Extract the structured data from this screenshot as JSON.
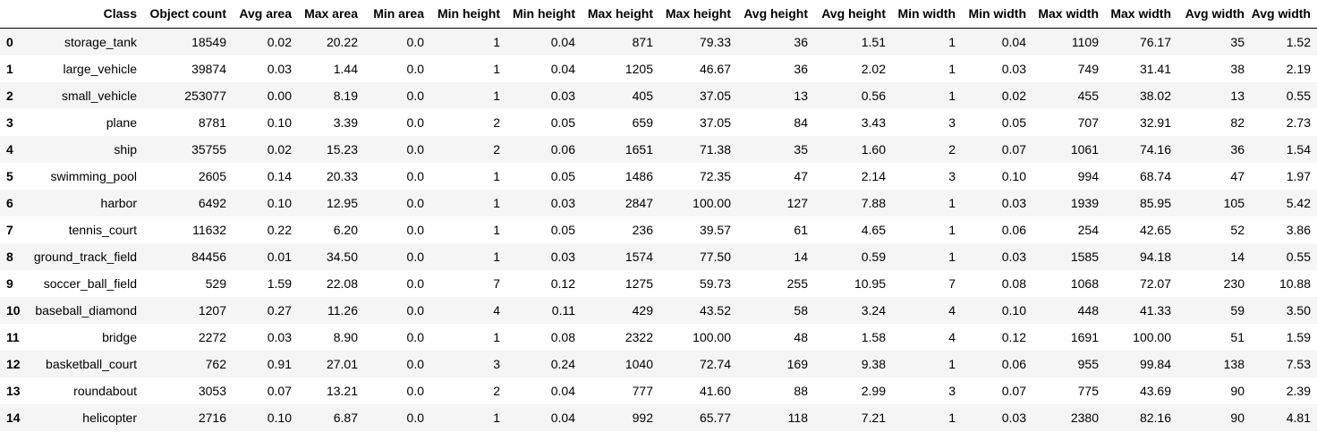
{
  "table": {
    "index_header": "",
    "columns": [
      "Class",
      "Object count",
      "Avg area",
      "Max area",
      "Min area",
      "Min height",
      "Min height",
      "Max height",
      "Max height",
      "Avg height",
      "Avg height",
      "Min width",
      "Min width",
      "Max width",
      "Max width",
      "Avg width",
      "Avg width"
    ],
    "rows": [
      {
        "index": "0",
        "cells": [
          "storage_tank",
          "18549",
          "0.02",
          "20.22",
          "0.0",
          "1",
          "0.04",
          "871",
          "79.33",
          "36",
          "1.51",
          "1",
          "0.04",
          "1109",
          "76.17",
          "35",
          "1.52"
        ]
      },
      {
        "index": "1",
        "cells": [
          "large_vehicle",
          "39874",
          "0.03",
          "1.44",
          "0.0",
          "1",
          "0.04",
          "1205",
          "46.67",
          "36",
          "2.02",
          "1",
          "0.03",
          "749",
          "31.41",
          "38",
          "2.19"
        ]
      },
      {
        "index": "2",
        "cells": [
          "small_vehicle",
          "253077",
          "0.00",
          "8.19",
          "0.0",
          "1",
          "0.03",
          "405",
          "37.05",
          "13",
          "0.56",
          "1",
          "0.02",
          "455",
          "38.02",
          "13",
          "0.55"
        ]
      },
      {
        "index": "3",
        "cells": [
          "plane",
          "8781",
          "0.10",
          "3.39",
          "0.0",
          "2",
          "0.05",
          "659",
          "37.05",
          "84",
          "3.43",
          "3",
          "0.05",
          "707",
          "32.91",
          "82",
          "2.73"
        ]
      },
      {
        "index": "4",
        "cells": [
          "ship",
          "35755",
          "0.02",
          "15.23",
          "0.0",
          "2",
          "0.06",
          "1651",
          "71.38",
          "35",
          "1.60",
          "2",
          "0.07",
          "1061",
          "74.16",
          "36",
          "1.54"
        ]
      },
      {
        "index": "5",
        "cells": [
          "swimming_pool",
          "2605",
          "0.14",
          "20.33",
          "0.0",
          "1",
          "0.05",
          "1486",
          "72.35",
          "47",
          "2.14",
          "3",
          "0.10",
          "994",
          "68.74",
          "47",
          "1.97"
        ]
      },
      {
        "index": "6",
        "cells": [
          "harbor",
          "6492",
          "0.10",
          "12.95",
          "0.0",
          "1",
          "0.03",
          "2847",
          "100.00",
          "127",
          "7.88",
          "1",
          "0.03",
          "1939",
          "85.95",
          "105",
          "5.42"
        ]
      },
      {
        "index": "7",
        "cells": [
          "tennis_court",
          "11632",
          "0.22",
          "6.20",
          "0.0",
          "1",
          "0.05",
          "236",
          "39.57",
          "61",
          "4.65",
          "1",
          "0.06",
          "254",
          "42.65",
          "52",
          "3.86"
        ]
      },
      {
        "index": "8",
        "cells": [
          "ground_track_field",
          "84456",
          "0.01",
          "34.50",
          "0.0",
          "1",
          "0.03",
          "1574",
          "77.50",
          "14",
          "0.59",
          "1",
          "0.03",
          "1585",
          "94.18",
          "14",
          "0.55"
        ]
      },
      {
        "index": "9",
        "cells": [
          "soccer_ball_field",
          "529",
          "1.59",
          "22.08",
          "0.0",
          "7",
          "0.12",
          "1275",
          "59.73",
          "255",
          "10.95",
          "7",
          "0.08",
          "1068",
          "72.07",
          "230",
          "10.88"
        ]
      },
      {
        "index": "10",
        "cells": [
          "baseball_diamond",
          "1207",
          "0.27",
          "11.26",
          "0.0",
          "4",
          "0.11",
          "429",
          "43.52",
          "58",
          "3.24",
          "4",
          "0.10",
          "448",
          "41.33",
          "59",
          "3.50"
        ]
      },
      {
        "index": "11",
        "cells": [
          "bridge",
          "2272",
          "0.03",
          "8.90",
          "0.0",
          "1",
          "0.08",
          "2322",
          "100.00",
          "48",
          "1.58",
          "4",
          "0.12",
          "1691",
          "100.00",
          "51",
          "1.59"
        ]
      },
      {
        "index": "12",
        "cells": [
          "basketball_court",
          "762",
          "0.91",
          "27.01",
          "0.0",
          "3",
          "0.24",
          "1040",
          "72.74",
          "169",
          "9.38",
          "1",
          "0.06",
          "955",
          "99.84",
          "138",
          "7.53"
        ]
      },
      {
        "index": "13",
        "cells": [
          "roundabout",
          "3053",
          "0.07",
          "13.21",
          "0.0",
          "2",
          "0.04",
          "777",
          "41.60",
          "88",
          "2.99",
          "3",
          "0.07",
          "775",
          "43.69",
          "90",
          "2.39"
        ]
      },
      {
        "index": "14",
        "cells": [
          "helicopter",
          "2716",
          "0.10",
          "6.87",
          "0.0",
          "1",
          "0.04",
          "992",
          "65.77",
          "118",
          "7.21",
          "1",
          "0.03",
          "2380",
          "82.16",
          "90",
          "4.81"
        ]
      }
    ]
  }
}
